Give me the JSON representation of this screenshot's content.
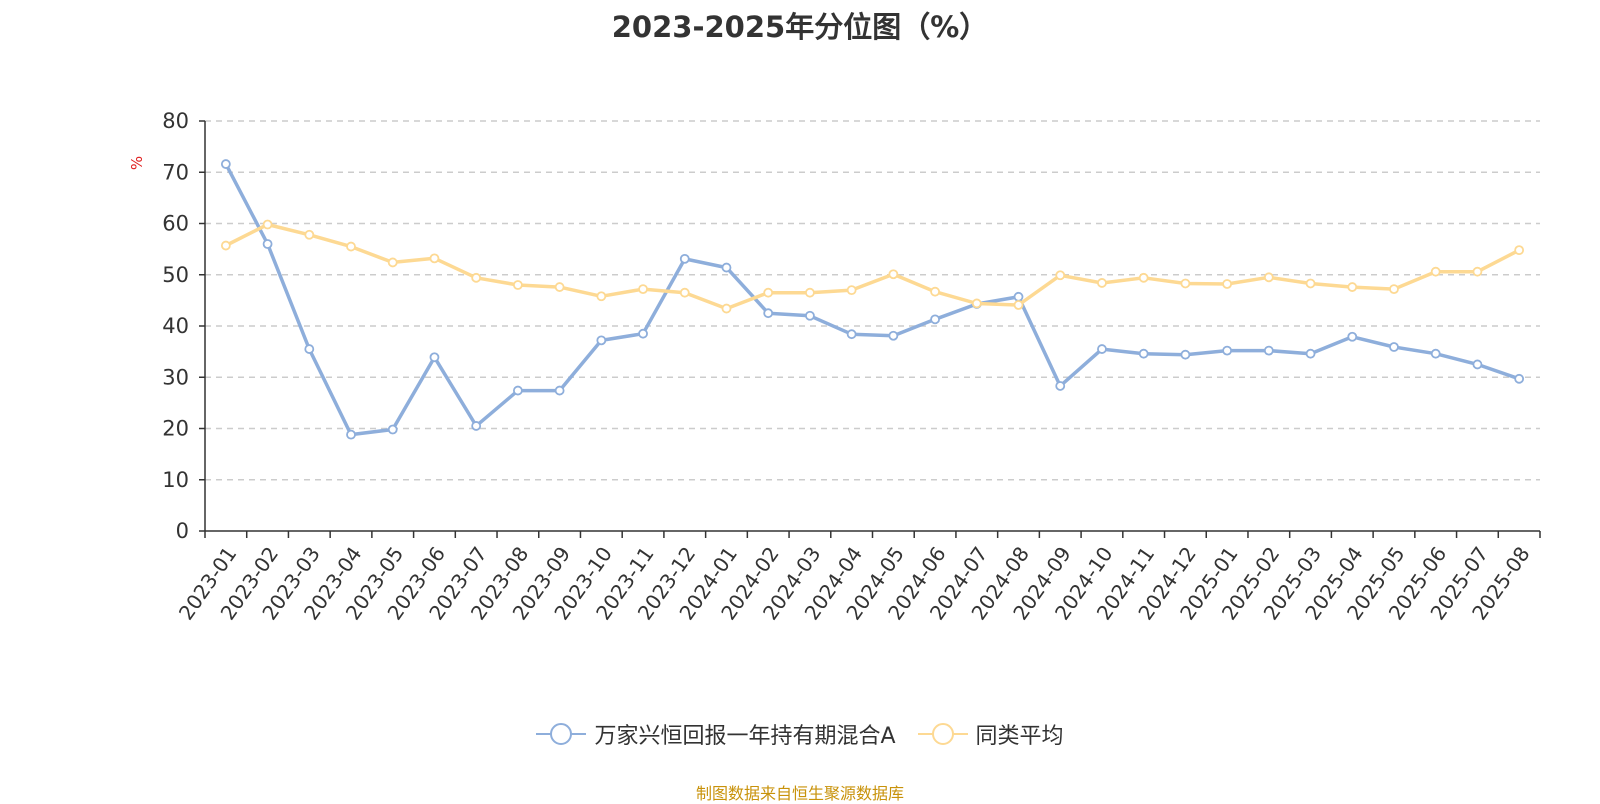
{
  "chart_data": {
    "type": "line",
    "title": "2023-2025年分位图（%）",
    "ylabel": "%",
    "ylim": [
      0,
      80
    ],
    "yticks": [
      0,
      10,
      20,
      30,
      40,
      50,
      60,
      70,
      80
    ],
    "grid": true,
    "legend_position": "bottom-center",
    "categories": [
      "2023-01",
      "2023-02",
      "2023-03",
      "2023-04",
      "2023-05",
      "2023-06",
      "2023-07",
      "2023-08",
      "2023-09",
      "2023-10",
      "2023-11",
      "2023-12",
      "2024-01",
      "2024-02",
      "2024-03",
      "2024-04",
      "2024-05",
      "2024-06",
      "2024-07",
      "2024-08",
      "2024-09",
      "2024-10",
      "2024-11",
      "2024-12",
      "2025-01",
      "2025-02",
      "2025-03",
      "2025-04",
      "2025-05",
      "2025-06",
      "2025-07",
      "2025-08"
    ],
    "series": [
      {
        "name": "万家兴恒回报一年持有期混合A",
        "color": "#8eaedb",
        "values": [
          71.6,
          56.0,
          35.5,
          18.8,
          19.8,
          33.9,
          20.5,
          27.4,
          27.4,
          37.2,
          38.5,
          53.1,
          51.4,
          42.5,
          42.0,
          38.4,
          38.1,
          41.3,
          44.3,
          45.7,
          28.3,
          35.5,
          34.6,
          34.4,
          35.2,
          35.2,
          34.6,
          37.9,
          35.9,
          34.6,
          32.5,
          29.7
        ]
      },
      {
        "name": "同类平均",
        "color": "#fdd993",
        "values": [
          55.7,
          59.8,
          57.8,
          55.5,
          52.4,
          53.2,
          49.4,
          48.0,
          47.6,
          45.8,
          47.2,
          46.5,
          43.4,
          46.5,
          46.5,
          47.0,
          50.1,
          46.7,
          44.4,
          44.1,
          49.9,
          48.4,
          49.4,
          48.3,
          48.2,
          49.5,
          48.3,
          47.6,
          47.2,
          50.6,
          50.6,
          54.8
        ]
      }
    ],
    "source": "制图数据来自恒生聚源数据库"
  },
  "colors": {
    "axis": "#333333",
    "grid": "#cccccc",
    "unit_label": "#e02020",
    "source_text": "#c8920a"
  }
}
